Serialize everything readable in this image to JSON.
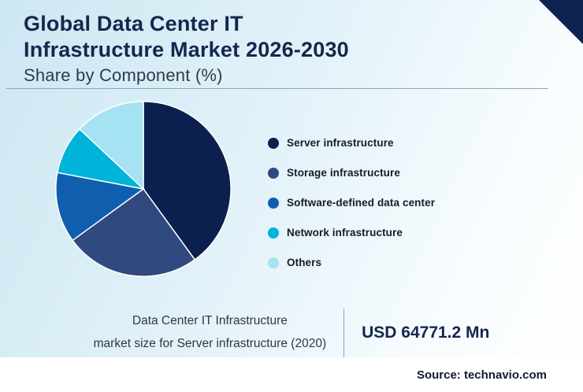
{
  "header": {
    "title_line1": "Global Data Center IT",
    "title_line2": "Infrastructure Market 2026-2030",
    "subtitle": "Share by Component (%)"
  },
  "chart_data": {
    "type": "pie",
    "title": "Global Data Center IT Infrastructure Market 2026-2030 — Share by Component (%)",
    "labels": [
      "Server infrastructure",
      "Storage infrastructure",
      "Software-defined data center",
      "Network infrastructure",
      "Others"
    ],
    "values": [
      40,
      25,
      13,
      9,
      13
    ],
    "colors": [
      "#0c2050",
      "#30497e",
      "#0f5fae",
      "#00b3d9",
      "#a5e2f2"
    ],
    "units": "%",
    "start_angle_deg": 0,
    "legend_position": "right"
  },
  "stat": {
    "description_line1": "Data Center IT Infrastructure",
    "description_line2": "market size for Server infrastructure (2020)",
    "value": "USD 64771.2 Mn"
  },
  "footer": {
    "source": "Source: technavio.com"
  }
}
